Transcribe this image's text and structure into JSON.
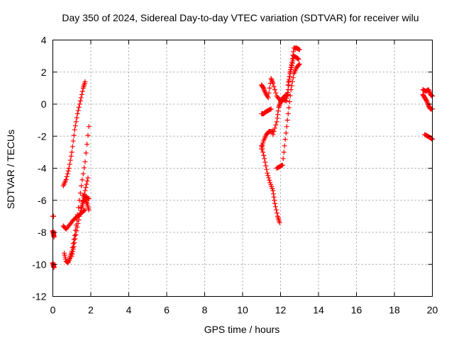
{
  "chart_data": {
    "type": "scatter",
    "title": "Day 350 of 2024, Sidereal Day-to-day VTEC variation (SDTVAR) for receiver wilu",
    "xlabel": "GPS time / hours",
    "ylabel": "SDTVAR / TECUs",
    "xlim": [
      0,
      20
    ],
    "ylim": [
      -12,
      4
    ],
    "xticks": [
      0,
      2,
      4,
      6,
      8,
      10,
      12,
      14,
      16,
      18,
      20
    ],
    "yticks": [
      -12,
      -10,
      -8,
      -6,
      -4,
      -2,
      0,
      2,
      4
    ],
    "grid": true,
    "marker": "plus",
    "color": "#ff0000",
    "series": [
      {
        "name": "seg-start-a",
        "x": [
          0.0,
          0.02,
          0.04,
          0.06
        ],
        "y": [
          -7.9,
          -8.0,
          -8.1,
          -8.3
        ]
      },
      {
        "name": "seg-start-b",
        "x": [
          0.0,
          0.02,
          0.04
        ],
        "y": [
          -7.0,
          -7.0,
          -7.0
        ]
      },
      {
        "name": "seg-start-c",
        "x": [
          0.0,
          0.02,
          0.04,
          0.06
        ],
        "y": [
          -9.9,
          -10.0,
          -10.1,
          -10.2
        ]
      },
      {
        "name": "seg-a1",
        "x": [
          0.55,
          0.7,
          0.85,
          1.0,
          1.15,
          1.3,
          1.45,
          1.6,
          1.7
        ],
        "y": [
          -5.1,
          -4.7,
          -4.0,
          -3.0,
          -1.6,
          -0.6,
          0.2,
          1.0,
          1.4
        ]
      },
      {
        "name": "seg-a2",
        "x": [
          0.55,
          0.7,
          0.9,
          1.1,
          1.3,
          1.5,
          1.7
        ],
        "y": [
          -7.6,
          -7.8,
          -7.5,
          -7.2,
          -7.0,
          -6.8,
          -6.6
        ]
      },
      {
        "name": "seg-a3",
        "x": [
          0.6,
          0.7,
          0.8,
          0.9,
          1.0,
          1.15,
          1.3,
          1.5,
          1.7,
          1.9
        ],
        "y": [
          -9.3,
          -9.8,
          -9.9,
          -9.6,
          -9.2,
          -8.2,
          -6.9,
          -5.1,
          -3.6,
          -1.4
        ]
      },
      {
        "name": "seg-a4",
        "x": [
          1.0,
          1.1,
          1.25,
          1.4,
          1.55,
          1.7,
          1.85
        ],
        "y": [
          -9.5,
          -8.9,
          -7.9,
          -7.0,
          -6.3,
          -5.4,
          -4.6
        ]
      },
      {
        "name": "seg-a5",
        "x": [
          1.5,
          1.6,
          1.7,
          1.8,
          1.9
        ],
        "y": [
          -6.5,
          -6.1,
          -5.9,
          -6.2,
          -6.6
        ]
      },
      {
        "name": "seg-a6",
        "x": [
          1.6,
          1.75,
          1.9
        ],
        "y": [
          -5.7,
          -5.8,
          -5.9
        ]
      },
      {
        "name": "seg-b1",
        "x": [
          11.0,
          11.15,
          11.3,
          11.45,
          11.6,
          11.7,
          11.85,
          11.95
        ],
        "y": [
          -2.6,
          -3.4,
          -4.3,
          -4.9,
          -5.4,
          -6.2,
          -7.0,
          -7.4
        ]
      },
      {
        "name": "seg-b2",
        "x": [
          11.0,
          11.1,
          11.25,
          11.4,
          11.6
        ],
        "y": [
          -2.8,
          -2.3,
          -1.9,
          -1.7,
          -1.7
        ]
      },
      {
        "name": "seg-b3",
        "x": [
          11.0,
          11.1,
          11.2,
          11.35,
          11.5
        ],
        "y": [
          -0.6,
          -0.6,
          -0.5,
          -0.4,
          -0.3
        ]
      },
      {
        "name": "seg-b4",
        "x": [
          11.0,
          11.1,
          11.2,
          11.35,
          11.5,
          11.6,
          11.8,
          12.0,
          12.2,
          12.4
        ],
        "y": [
          1.2,
          1.0,
          0.7,
          0.4,
          1.6,
          1.3,
          0.5,
          0.2,
          0.5,
          0.6
        ]
      },
      {
        "name": "seg-b5",
        "x": [
          11.8,
          11.95,
          12.1,
          12.25,
          12.4,
          12.55,
          12.7,
          12.85,
          13.0
        ],
        "y": [
          -4.0,
          -3.9,
          -3.8,
          -2.2,
          -0.6,
          0.9,
          1.9,
          2.3,
          2.5
        ]
      },
      {
        "name": "seg-b6",
        "x": [
          11.6,
          11.8,
          11.9,
          12.0,
          12.1,
          12.3,
          12.4,
          12.5,
          12.6,
          12.7,
          12.85,
          13.0
        ],
        "y": [
          -1.9,
          -1.1,
          -0.2,
          0.1,
          0.3,
          0.2,
          0.9,
          2.0,
          2.6,
          3.5,
          3.5,
          3.4
        ]
      },
      {
        "name": "seg-b7",
        "x": [
          12.4,
          12.5,
          12.6,
          12.7,
          12.85,
          12.95
        ],
        "y": [
          1.2,
          1.9,
          2.4,
          3.0,
          2.9,
          2.8
        ]
      },
      {
        "name": "seg-c1",
        "x": [
          19.5,
          19.6,
          19.7,
          19.8,
          19.9,
          20.0
        ],
        "y": [
          0.6,
          0.4,
          0.2,
          -0.1,
          -0.3,
          -0.3
        ]
      },
      {
        "name": "seg-c2",
        "x": [
          19.5,
          19.65,
          19.8,
          19.9,
          20.0
        ],
        "y": [
          0.9,
          0.8,
          0.9,
          0.6,
          0.5
        ]
      },
      {
        "name": "seg-c3",
        "x": [
          19.6,
          19.75,
          19.9,
          20.0
        ],
        "y": [
          -1.9,
          -2.0,
          -2.1,
          -2.2
        ]
      }
    ]
  }
}
